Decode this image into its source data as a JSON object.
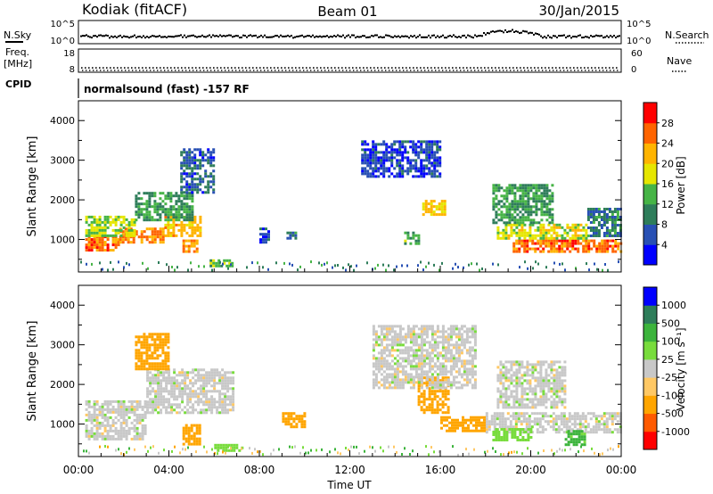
{
  "header": {
    "station": "Kodiak (fitACF)",
    "beam": "Beam 01",
    "date": "30/Jan/2015"
  },
  "status_panels": {
    "nsky_label": "N.Sky",
    "nsky_ticks": [
      "10^5",
      "10^0"
    ],
    "nsearch_label": "N.Search",
    "nsearch_ticks": [
      "10^5",
      "10^0"
    ],
    "freq_label_1": "Freq.",
    "freq_label_2": "[MHz]",
    "freq_ticks": [
      "18",
      "8"
    ],
    "nave_label": "Nave",
    "nave_ticks": [
      "60",
      "0"
    ],
    "cpid_label": "CPID",
    "cpid_text": "normalsound (fast) -157 RF",
    "nsky_level_fraction": 0.35,
    "freq_level_fraction": 0.22
  },
  "chart_data": [
    {
      "type": "heatmap",
      "title": "Power",
      "ylabel": "Slant Range [km]",
      "xlabel": "",
      "ylim": [
        180,
        4500
      ],
      "xlim": [
        0,
        24
      ],
      "yticks": [
        "1000",
        "2000",
        "3000",
        "4000"
      ],
      "colorbar_label": "Power [dB]",
      "colorbar_ticks": [
        "28",
        "24",
        "20",
        "16",
        "12",
        "8",
        "4"
      ],
      "colorbar_colors": [
        "#0000ff",
        "#2850b4",
        "#2e7d5a",
        "#46b446",
        "#e6e600",
        "#ffb400",
        "#ff6400",
        "#ff0000"
      ],
      "regions": [
        {
          "t0": 0.3,
          "t1": 1.8,
          "r0": 700,
          "r1": 1100,
          "level": 26
        },
        {
          "t0": 1.8,
          "t1": 3.8,
          "r0": 900,
          "r1": 1300,
          "level": 24
        },
        {
          "t0": 3.8,
          "t1": 5.4,
          "r0": 1100,
          "r1": 1600,
          "level": 21
        },
        {
          "t0": 0.3,
          "t1": 2.5,
          "r0": 1100,
          "r1": 1600,
          "level": 16
        },
        {
          "t0": 2.5,
          "t1": 5.0,
          "r0": 1500,
          "r1": 2200,
          "level": 12
        },
        {
          "t0": 4.5,
          "t1": 6.0,
          "r0": 2200,
          "r1": 3300,
          "level": 7
        },
        {
          "t0": 4.6,
          "t1": 5.2,
          "r0": 700,
          "r1": 1000,
          "level": 24
        },
        {
          "t0": 5.8,
          "t1": 6.8,
          "r0": 300,
          "r1": 500,
          "level": 14
        },
        {
          "t0": 15.2,
          "t1": 16.2,
          "r0": 1600,
          "r1": 2000,
          "level": 20
        },
        {
          "t0": 12.5,
          "t1": 16.0,
          "r0": 2600,
          "r1": 3500,
          "level": 5
        },
        {
          "t0": 19.2,
          "t1": 24.0,
          "r0": 700,
          "r1": 1000,
          "level": 26
        },
        {
          "t0": 18.5,
          "t1": 22.5,
          "r0": 1000,
          "r1": 1400,
          "level": 18
        },
        {
          "t0": 18.3,
          "t1": 21.0,
          "r0": 1400,
          "r1": 2400,
          "level": 12
        },
        {
          "t0": 22.5,
          "t1": 24.0,
          "r0": 1100,
          "r1": 1800,
          "level": 9
        },
        {
          "t0": 8.0,
          "t1": 8.4,
          "r0": 900,
          "r1": 1300,
          "level": 6
        },
        {
          "t0": 9.2,
          "t1": 9.6,
          "r0": 1000,
          "r1": 1200,
          "level": 10
        },
        {
          "t0": 14.4,
          "t1": 15.0,
          "r0": 900,
          "r1": 1200,
          "level": 14
        }
      ]
    },
    {
      "type": "heatmap",
      "title": "Velocity",
      "ylabel": "Slant Range [km]",
      "xlabel": "Time UT",
      "ylim": [
        180,
        4500
      ],
      "xlim": [
        0,
        24
      ],
      "yticks": [
        "1000",
        "2000",
        "3000",
        "4000"
      ],
      "xticks": [
        "00:00",
        "04:00",
        "08:00",
        "12:00",
        "16:00",
        "20:00",
        "00:00"
      ],
      "colorbar_label": "Velocity [m s⁻¹]",
      "colorbar_ticks": [
        "1000",
        "500",
        "100",
        "25",
        "-25",
        "-100",
        "-500",
        "-1000"
      ],
      "colorbar_colors": [
        "#ff0000",
        "#ff5a00",
        "#ffa500",
        "#ffc864",
        "#c8c8c8",
        "#78dc3c",
        "#3cb43c",
        "#2e7d5a",
        "#0000ff"
      ],
      "regions": [
        {
          "t0": 0.3,
          "t1": 3.0,
          "r0": 600,
          "r1": 1600,
          "level": 0
        },
        {
          "t0": 3.0,
          "t1": 6.8,
          "r0": 1300,
          "r1": 2400,
          "level": 0
        },
        {
          "t0": 4.6,
          "t1": 5.4,
          "r0": 500,
          "r1": 1000,
          "level": -300
        },
        {
          "t0": 2.5,
          "t1": 4.0,
          "r0": 2400,
          "r1": 3300,
          "level": -150
        },
        {
          "t0": 6.0,
          "t1": 7.2,
          "r0": 300,
          "r1": 500,
          "level": 60
        },
        {
          "t0": 15.0,
          "t1": 16.4,
          "r0": 1300,
          "r1": 2200,
          "level": -200
        },
        {
          "t0": 13.0,
          "t1": 17.5,
          "r0": 1900,
          "r1": 3500,
          "level": 0
        },
        {
          "t0": 18.0,
          "t1": 24.0,
          "r0": 800,
          "r1": 1300,
          "level": 0
        },
        {
          "t0": 18.3,
          "t1": 20.0,
          "r0": 600,
          "r1": 900,
          "level": 60
        },
        {
          "t0": 21.5,
          "t1": 22.4,
          "r0": 450,
          "r1": 850,
          "level": 120
        },
        {
          "t0": 16.0,
          "t1": 18.0,
          "r0": 800,
          "r1": 1200,
          "level": -150
        },
        {
          "t0": 18.5,
          "t1": 21.5,
          "r0": 1400,
          "r1": 2600,
          "level": 0
        },
        {
          "t0": 9.0,
          "t1": 10.0,
          "r0": 900,
          "r1": 1300,
          "level": -150
        }
      ]
    }
  ]
}
